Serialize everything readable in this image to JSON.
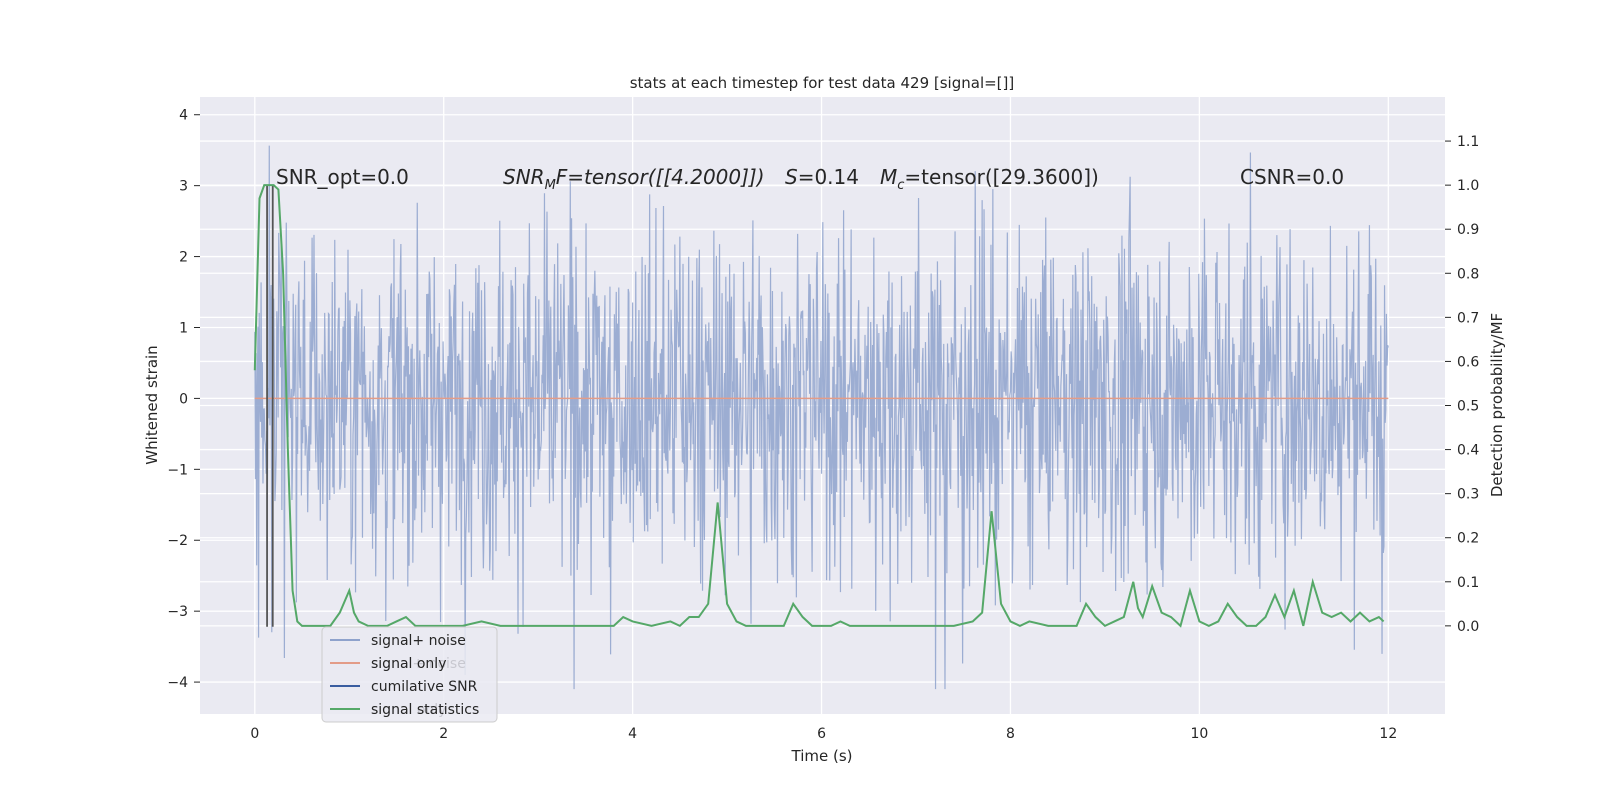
{
  "chart_data": {
    "type": "line",
    "title": "stats at each timestep for test data 429 [signal=[]]",
    "xlabel": "Time (s)",
    "ylabel": "Whitened strain",
    "ylabel_right": "Detection probability/MF",
    "xlim": [
      -0.58,
      12.6
    ],
    "ylim": [
      -4.45,
      4.25
    ],
    "ylim_right": [
      -0.2,
      1.2
    ],
    "x_ticks": [
      0,
      2,
      4,
      6,
      8,
      10,
      12
    ],
    "y_ticks": [
      4,
      3,
      2,
      1,
      0,
      -1,
      -2,
      -3,
      -4
    ],
    "y_ticks_right": [
      1.1,
      1.0,
      0.9,
      0.8,
      0.7,
      0.6,
      0.5,
      0.4,
      0.3,
      0.2,
      0.1,
      0.0
    ],
    "annotations": [
      {
        "text": "SNR_opt=0.0",
        "anchor": "left"
      },
      {
        "text": "SNR",
        "sub": "M",
        "rest": "F=tensor([[4.2000]])",
        "anchor": "left",
        "math": true
      },
      {
        "text": "S",
        "rest": "=0.14",
        "anchor": "left",
        "math": true
      },
      {
        "text": "M",
        "sub": "c",
        "rest": "=tensor([29.3600])",
        "anchor": "left",
        "math": true
      },
      {
        "text": "CSNR=0.0",
        "anchor": "left"
      }
    ],
    "legend": {
      "position": "lower-left",
      "entries": [
        {
          "label": "signal+ noise",
          "color": "#8ea2cc"
        },
        {
          "label": "signal only",
          "color": "#e39c88"
        },
        {
          "label": "cumilative SNR",
          "color": "#3a5da0"
        },
        {
          "label": "signal statistics",
          "color": "#55a868"
        }
      ],
      "ghost_labels": [
        "signal+ noise",
        "signal only"
      ]
    },
    "series": [
      {
        "name": "signal+ noise",
        "color": "#8ea2cc",
        "x_range": [
          0,
          12
        ],
        "approx_envelope": [
          -2.3,
          2.3
        ],
        "max_spike": 3.85,
        "min_spike": -4.1
      },
      {
        "name": "signal only",
        "color": "#e39c88",
        "x": [
          0,
          12
        ],
        "y": [
          0,
          0
        ]
      },
      {
        "name": "cumilative SNR",
        "color": "#555555",
        "vlines_x": [
          0.13,
          0.19
        ],
        "vlines_y": [
          -3.22,
          3.0
        ]
      },
      {
        "name": "signal statistics",
        "color": "#55a868",
        "axis": "right",
        "x": [
          0.0,
          0.05,
          0.1,
          0.15,
          0.2,
          0.25,
          0.3,
          0.35,
          0.4,
          0.45,
          0.5,
          0.6,
          0.7,
          0.8,
          0.9,
          1.0,
          1.05,
          1.1,
          1.2,
          1.3,
          1.4,
          1.5,
          1.6,
          1.7,
          1.8,
          2.0,
          2.1,
          2.2,
          2.4,
          2.6,
          2.8,
          3.0,
          3.2,
          3.4,
          3.6,
          3.8,
          3.9,
          4.0,
          4.2,
          4.4,
          4.5,
          4.6,
          4.7,
          4.8,
          4.9,
          5.0,
          5.1,
          5.2,
          5.4,
          5.6,
          5.7,
          5.8,
          5.9,
          6.0,
          6.1,
          6.2,
          6.3,
          6.5,
          6.6,
          6.8,
          7.0,
          7.2,
          7.4,
          7.6,
          7.7,
          7.8,
          7.9,
          8.0,
          8.1,
          8.2,
          8.4,
          8.6,
          8.7,
          8.8,
          8.9,
          9.0,
          9.1,
          9.2,
          9.3,
          9.35,
          9.4,
          9.5,
          9.6,
          9.7,
          9.8,
          9.9,
          10.0,
          10.1,
          10.2,
          10.3,
          10.4,
          10.5,
          10.6,
          10.7,
          10.8,
          10.9,
          11.0,
          11.1,
          11.2,
          11.3,
          11.4,
          11.5,
          11.6,
          11.7,
          11.8,
          11.9,
          11.95
        ],
        "y": [
          0.58,
          0.97,
          1.0,
          1.0,
          1.0,
          0.99,
          0.8,
          0.4,
          0.08,
          0.01,
          0.0,
          0.0,
          0.0,
          0.0,
          0.03,
          0.08,
          0.03,
          0.01,
          0.0,
          0.0,
          0.0,
          0.01,
          0.02,
          0.0,
          0.0,
          0.0,
          0.0,
          0.0,
          0.01,
          0.0,
          0.0,
          0.0,
          0.0,
          0.0,
          0.0,
          0.0,
          0.02,
          0.01,
          0.0,
          0.01,
          0.0,
          0.02,
          0.02,
          0.05,
          0.28,
          0.05,
          0.01,
          0.0,
          0.0,
          0.0,
          0.05,
          0.02,
          0.0,
          0.0,
          0.0,
          0.01,
          0.0,
          0.0,
          0.0,
          0.0,
          0.0,
          0.0,
          0.0,
          0.01,
          0.03,
          0.26,
          0.05,
          0.01,
          0.0,
          0.01,
          0.0,
          0.0,
          0.0,
          0.05,
          0.02,
          0.0,
          0.01,
          0.02,
          0.1,
          0.04,
          0.02,
          0.09,
          0.03,
          0.02,
          0.0,
          0.08,
          0.01,
          0.0,
          0.01,
          0.05,
          0.02,
          0.0,
          0.0,
          0.02,
          0.07,
          0.02,
          0.08,
          0.0,
          0.1,
          0.03,
          0.02,
          0.03,
          0.01,
          0.03,
          0.01,
          0.02,
          0.01
        ]
      }
    ]
  }
}
